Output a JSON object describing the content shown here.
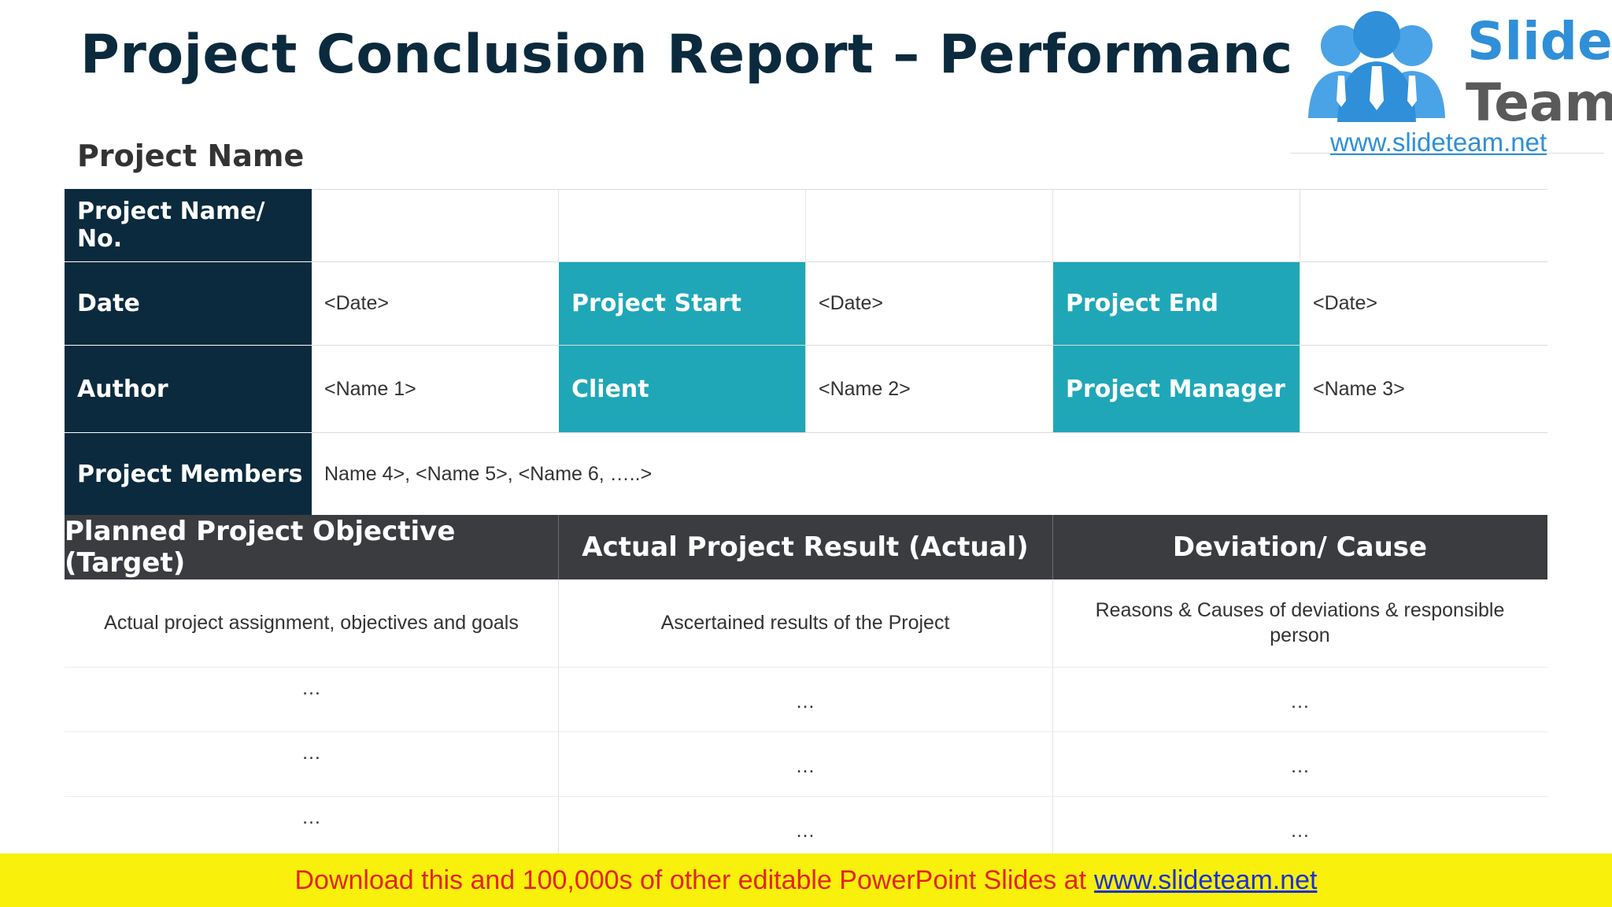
{
  "title": "Project Conclusion Report – Performance Analysis",
  "logo": {
    "word1": "Slide",
    "word2": "Team",
    "url": "www.slideteam.net"
  },
  "section_label": "Project Name",
  "info": {
    "project_name_label": "Project Name/ No.",
    "date_label": "Date",
    "date_value": "<Date>",
    "start_label": "Project Start",
    "start_value": "<Date>",
    "end_label": "Project End",
    "end_value": "<Date>",
    "author_label": "Author",
    "author_value": "<Name 1>",
    "client_label": "Client",
    "client_value": "<Name 2>",
    "manager_label": "Project Manager",
    "manager_value": "<Name 3>",
    "members_label": "Project Members",
    "members_value": "Name 4>, <Name 5>, <Name 6, …..>"
  },
  "table": {
    "headers": [
      "Planned Project Objective (Target)",
      "Actual Project Result (Actual)",
      "Deviation/ Cause"
    ],
    "rows": [
      [
        "Actual project assignment, objectives and goals",
        "Ascertained results of the Project",
        "Reasons & Causes of deviations & responsible person"
      ],
      [
        "…",
        "…",
        "…"
      ],
      [
        "…",
        "…",
        "…"
      ],
      [
        "…",
        "…",
        "…"
      ]
    ]
  },
  "banner": {
    "text": "Download this and 100,000s of other editable PowerPoint Slides at",
    "link": "www.slideteam.net"
  },
  "colors": {
    "navy": "#0b2a3d",
    "teal": "#1fa7b7",
    "header_gray": "#3b3c40",
    "banner_yellow": "#f9f00b",
    "banner_red": "#e3241b"
  }
}
